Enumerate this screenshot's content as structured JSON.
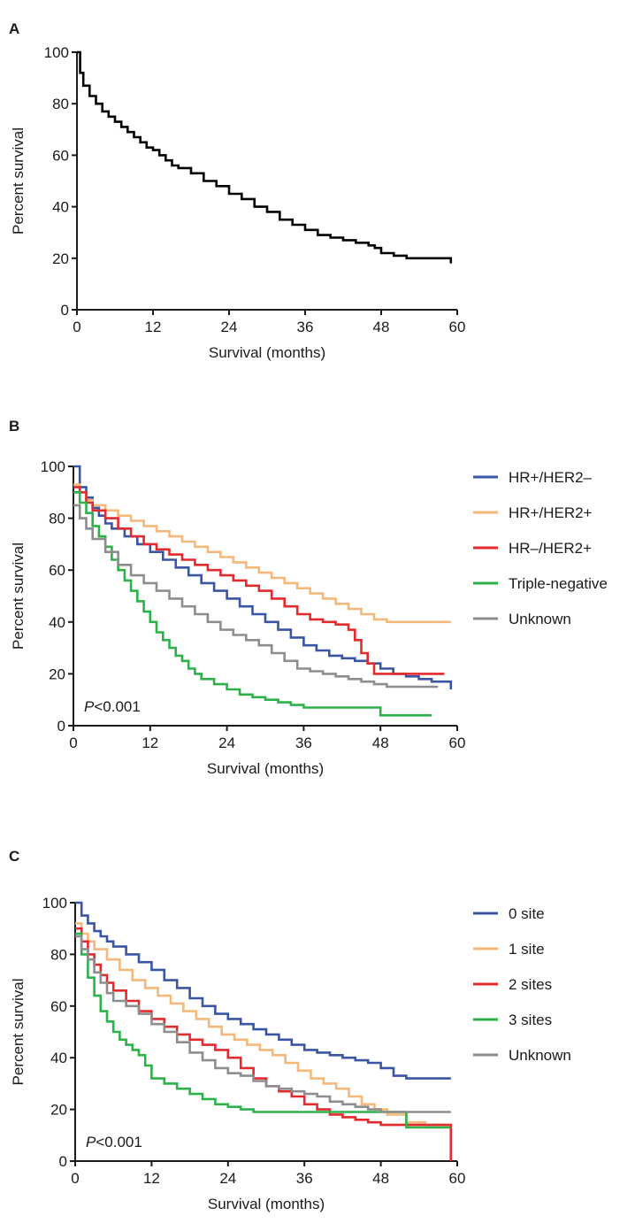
{
  "chart_data": [
    {
      "panel": "A",
      "type": "line",
      "step": true,
      "xlabel": "Survival (months)",
      "ylabel": "Percent survival",
      "xlim": [
        0,
        60
      ],
      "ylim": [
        0,
        100
      ],
      "xticks": [
        "0",
        "12",
        "24",
        "36",
        "48",
        "60"
      ],
      "yticks": [
        "0",
        "20",
        "40",
        "60",
        "80",
        "100"
      ],
      "grid": false,
      "annotation": "",
      "legend": [],
      "series": [
        {
          "color": "#000000",
          "x": [
            0,
            0.5,
            1,
            2,
            3,
            4,
            5,
            6,
            7,
            8,
            9,
            10,
            11,
            12,
            13,
            14,
            15,
            16,
            18,
            20,
            22,
            24,
            26,
            28,
            30,
            32,
            34,
            36,
            38,
            40,
            42,
            44,
            46,
            47,
            48,
            50,
            52,
            54,
            56,
            59
          ],
          "y": [
            100,
            92,
            87,
            83,
            80,
            77,
            75,
            73,
            71,
            69,
            67,
            65,
            63,
            62,
            60,
            58,
            56,
            55,
            53,
            50,
            48,
            45,
            43,
            40,
            38,
            35,
            33,
            31,
            29,
            28,
            27,
            26,
            25,
            24,
            22,
            21,
            20,
            20,
            20,
            18
          ]
        }
      ]
    },
    {
      "panel": "B",
      "type": "line",
      "step": true,
      "xlabel": "Survival (months)",
      "ylabel": "Percent survival",
      "xlim": [
        0,
        60
      ],
      "ylim": [
        0,
        100
      ],
      "xticks": [
        "0",
        "12",
        "24",
        "36",
        "48",
        "60"
      ],
      "yticks": [
        "0",
        "20",
        "40",
        "60",
        "80",
        "100"
      ],
      "grid": false,
      "annotation": "P<0.001",
      "legend_position": "right",
      "series": [
        {
          "name": "HR+/HER2–",
          "color": "#3a55a4",
          "x": [
            0,
            1,
            2,
            3,
            4,
            5,
            6,
            8,
            10,
            12,
            14,
            16,
            18,
            20,
            22,
            24,
            26,
            28,
            30,
            32,
            34,
            36,
            38,
            40,
            42,
            44,
            46,
            48,
            50,
            52,
            54,
            56,
            59
          ],
          "y": [
            100,
            92,
            88,
            84,
            81,
            78,
            76,
            73,
            70,
            67,
            64,
            61,
            58,
            55,
            52,
            49,
            46,
            43,
            40,
            37,
            34,
            31,
            29,
            27,
            26,
            25,
            24,
            22,
            20,
            19,
            18,
            17,
            14
          ]
        },
        {
          "name": "HR+/HER2+",
          "color": "#f4b97a",
          "x": [
            0,
            1,
            2,
            3,
            5,
            7,
            9,
            11,
            13,
            15,
            17,
            19,
            21,
            23,
            25,
            27,
            29,
            31,
            33,
            35,
            37,
            39,
            41,
            43,
            45,
            47,
            49,
            51,
            53,
            55,
            59
          ],
          "y": [
            93,
            90,
            87,
            85,
            83,
            81,
            79,
            77,
            75,
            73,
            71,
            69,
            67,
            65,
            63,
            61,
            59,
            57,
            55,
            53,
            51,
            49,
            47,
            45,
            43,
            41,
            40,
            40,
            40,
            40,
            40
          ]
        },
        {
          "name": "HR–/HER2+",
          "color": "#e32a2d",
          "x": [
            0,
            1,
            2,
            3,
            5,
            7,
            9,
            11,
            13,
            15,
            17,
            19,
            21,
            23,
            25,
            27,
            29,
            31,
            33,
            35,
            37,
            39,
            41,
            43,
            44,
            45,
            46,
            47,
            48,
            49,
            50,
            58
          ],
          "y": [
            92,
            90,
            86,
            83,
            80,
            76,
            73,
            70,
            68,
            66,
            64,
            62,
            60,
            58,
            56,
            54,
            52,
            49,
            46,
            43,
            41,
            40,
            39,
            37,
            33,
            28,
            24,
            20,
            20,
            20,
            20,
            20
          ]
        },
        {
          "name": "Triple-negative",
          "color": "#2db24a",
          "x": [
            0,
            1,
            2,
            3,
            4,
            5,
            6,
            7,
            8,
            9,
            10,
            11,
            12,
            13,
            14,
            15,
            16,
            17,
            18,
            19,
            20,
            22,
            24,
            26,
            28,
            30,
            32,
            34,
            36,
            40,
            44,
            48,
            56
          ],
          "y": [
            90,
            86,
            82,
            77,
            73,
            69,
            64,
            60,
            56,
            52,
            48,
            44,
            40,
            36,
            33,
            30,
            27,
            25,
            22,
            20,
            18,
            16,
            14,
            12,
            11,
            10,
            9,
            8,
            7,
            7,
            7,
            4,
            4
          ]
        },
        {
          "name": "Unknown",
          "color": "#8d8d8d",
          "x": [
            0,
            1,
            2,
            3,
            5,
            7,
            9,
            11,
            13,
            15,
            17,
            19,
            21,
            23,
            25,
            27,
            29,
            31,
            33,
            35,
            37,
            39,
            41,
            43,
            45,
            47,
            49,
            51,
            53,
            57
          ],
          "y": [
            85,
            80,
            76,
            72,
            67,
            62,
            58,
            55,
            52,
            49,
            46,
            43,
            40,
            37,
            35,
            33,
            31,
            28,
            25,
            22,
            21,
            20,
            19,
            18,
            17,
            16,
            15,
            15,
            15,
            15
          ]
        }
      ]
    },
    {
      "panel": "C",
      "type": "line",
      "step": true,
      "xlabel": "Survival (months)",
      "ylabel": "Percent survival",
      "xlim": [
        0,
        60
      ],
      "ylim": [
        0,
        100
      ],
      "xticks": [
        "0",
        "12",
        "24",
        "36",
        "48",
        "60"
      ],
      "yticks": [
        "0",
        "20",
        "40",
        "60",
        "80",
        "100"
      ],
      "grid": false,
      "annotation": "P<0.001",
      "legend_position": "right",
      "series": [
        {
          "name": "0 site",
          "color": "#3a55a4",
          "x": [
            0,
            1,
            2,
            3,
            4,
            5,
            6,
            8,
            10,
            12,
            14,
            16,
            18,
            20,
            22,
            24,
            26,
            28,
            30,
            32,
            34,
            36,
            38,
            40,
            42,
            44,
            46,
            48,
            50,
            52,
            54,
            59
          ],
          "y": [
            100,
            95,
            92,
            89,
            87,
            85,
            83,
            80,
            77,
            74,
            70,
            67,
            63,
            60,
            57,
            55,
            53,
            51,
            49,
            47,
            45,
            43,
            42,
            41,
            40,
            39,
            38,
            36,
            33,
            32,
            32,
            32
          ]
        },
        {
          "name": "1 site",
          "color": "#f4b97a",
          "x": [
            0,
            1,
            2,
            3,
            5,
            7,
            9,
            11,
            13,
            15,
            17,
            19,
            21,
            23,
            25,
            27,
            29,
            31,
            33,
            35,
            37,
            39,
            41,
            43,
            45,
            47,
            49,
            52,
            55,
            59
          ],
          "y": [
            92,
            88,
            85,
            82,
            78,
            74,
            70,
            67,
            64,
            61,
            58,
            55,
            52,
            49,
            47,
            45,
            43,
            41,
            38,
            35,
            32,
            30,
            28,
            25,
            22,
            20,
            18,
            15,
            14,
            14
          ]
        },
        {
          "name": "2 sites",
          "color": "#e32a2d",
          "x": [
            0,
            1,
            2,
            3,
            4,
            5,
            6,
            8,
            10,
            12,
            14,
            16,
            18,
            20,
            22,
            24,
            26,
            28,
            30,
            32,
            34,
            36,
            38,
            40,
            42,
            44,
            46,
            48,
            50,
            54,
            58,
            59
          ],
          "y": [
            90,
            85,
            80,
            76,
            72,
            69,
            66,
            62,
            58,
            55,
            52,
            49,
            47,
            45,
            43,
            40,
            36,
            32,
            29,
            27,
            25,
            22,
            20,
            18,
            17,
            16,
            15,
            14,
            14,
            14,
            14,
            0
          ]
        },
        {
          "name": "3 sites",
          "color": "#2db24a",
          "x": [
            0,
            1,
            2,
            3,
            4,
            5,
            6,
            7,
            8,
            9,
            10,
            11,
            12,
            14,
            16,
            18,
            20,
            22,
            24,
            26,
            28,
            32,
            36,
            40,
            44,
            48,
            52,
            59
          ],
          "y": [
            88,
            80,
            71,
            64,
            58,
            54,
            50,
            47,
            45,
            43,
            41,
            37,
            32,
            30,
            28,
            26,
            24,
            22,
            21,
            20,
            19,
            19,
            19,
            19,
            19,
            19,
            13,
            13
          ]
        },
        {
          "name": "Unknown",
          "color": "#8d8d8d",
          "x": [
            0,
            1,
            2,
            3,
            4,
            5,
            6,
            8,
            10,
            12,
            14,
            16,
            18,
            20,
            22,
            24,
            26,
            28,
            30,
            32,
            34,
            36,
            38,
            40,
            42,
            44,
            46,
            48,
            59
          ],
          "y": [
            87,
            82,
            78,
            73,
            69,
            65,
            62,
            60,
            57,
            53,
            50,
            46,
            42,
            39,
            36,
            34,
            33,
            31,
            29,
            28,
            27,
            26,
            25,
            23,
            22,
            21,
            20,
            19,
            19
          ]
        }
      ]
    }
  ]
}
